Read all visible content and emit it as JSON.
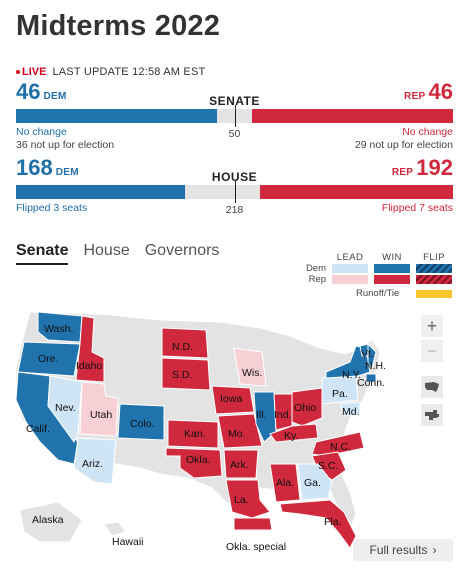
{
  "title": "Midterms 2022",
  "live": {
    "label": "LIVE",
    "updated": "LAST UPDATE 12:58 AM EST"
  },
  "senate": {
    "label": "SENATE",
    "dem_count": "46",
    "dem_label": "DEM",
    "rep_count": "46",
    "rep_label": "REP",
    "dem_share": 0.46,
    "rep_share": 0.46,
    "majority": "50",
    "dem_note1": "No change",
    "dem_note2": "36 not up for election",
    "rep_note1": "No change",
    "rep_note2": "29 not up for election"
  },
  "house": {
    "label": "HOUSE",
    "dem_count": "168",
    "dem_label": "DEM",
    "rep_count": "192",
    "rep_label": "REP",
    "dem_share": 0.386,
    "rep_share": 0.441,
    "majority": "218",
    "dem_note": "Flipped 3 seats",
    "rep_note": "Flipped 7 seats"
  },
  "tabs": [
    "Senate",
    "House",
    "Governors"
  ],
  "legend": {
    "lead": "LEAD",
    "win": "WIN",
    "flip": "FLIP",
    "dem": "Dem",
    "rep": "Rep",
    "runoff": "Runoff/Tie",
    "colors": {
      "dem_lead": "#cfe4f5",
      "dem_win": "#2173ae",
      "rep_lead": "#f6d0d4",
      "rep_win": "#d0293d",
      "runoff": "#f5c52a"
    }
  },
  "map": {
    "states": [
      "Wash.",
      "Ore.",
      "Idaho",
      "Calif.",
      "Nev.",
      "Utah",
      "Ariz.",
      "Colo.",
      "N.D.",
      "S.D.",
      "Kan.",
      "Okla.",
      "Iowa",
      "Mo.",
      "Ark.",
      "La.",
      "Wis.",
      "Ill.",
      "Ind.",
      "Ohio",
      "Ky.",
      "Pa.",
      "N.Y.",
      "Vt.",
      "N.H.",
      "Conn.",
      "Md.",
      "N.C.",
      "S.C.",
      "Ga.",
      "Ala.",
      "Fla.",
      "Alaska",
      "Hawaii",
      "Okla. special"
    ]
  },
  "controls": {
    "zoom_in": "+",
    "zoom_out": "−"
  },
  "full_results": "Full results",
  "full_results_chevron": "›"
}
